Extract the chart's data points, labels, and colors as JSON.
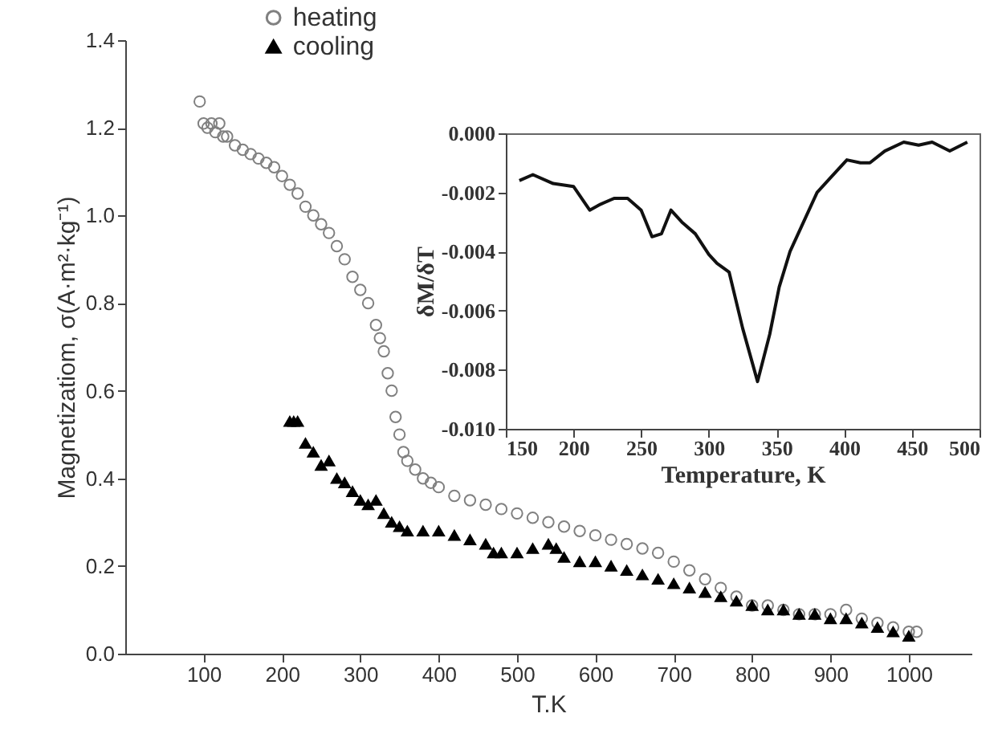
{
  "chart_data": [
    {
      "type": "scatter",
      "xlabel": "T.K",
      "ylabel": "Magnetizatiom, σ(A·m²·kg⁻¹)",
      "xlim": [
        0,
        1080
      ],
      "xticks": [
        100,
        200,
        300,
        400,
        500,
        600,
        700,
        800,
        900,
        1000
      ],
      "ylim": [
        0,
        1.4
      ],
      "yticks": [
        {
          "value": 0,
          "label": "0.0"
        },
        0.2,
        0.4,
        0.6,
        0.8,
        {
          "value": 1,
          "label": "1.0"
        },
        1.2,
        1.4
      ],
      "legend": "top left",
      "series": [
        {
          "name": "heating",
          "color": "#808080",
          "marker": "circle",
          "x": [
            95,
            100,
            105,
            110,
            115,
            120,
            125,
            130,
            140,
            150,
            160,
            170,
            180,
            190,
            200,
            210,
            220,
            230,
            240,
            250,
            260,
            270,
            280,
            290,
            300,
            310,
            320,
            325,
            330,
            335,
            340,
            345,
            350,
            355,
            360,
            370,
            380,
            390,
            400,
            420,
            440,
            460,
            480,
            500,
            520,
            540,
            560,
            580,
            600,
            620,
            640,
            660,
            680,
            700,
            720,
            740,
            760,
            780,
            800,
            820,
            840,
            860,
            880,
            900,
            920,
            940,
            960,
            980,
            1000,
            1010
          ],
          "values": [
            1.26,
            1.21,
            1.2,
            1.21,
            1.19,
            1.21,
            1.18,
            1.18,
            1.16,
            1.15,
            1.14,
            1.13,
            1.12,
            1.11,
            1.09,
            1.07,
            1.05,
            1.02,
            1.0,
            0.98,
            0.96,
            0.93,
            0.9,
            0.86,
            0.83,
            0.8,
            0.75,
            0.72,
            0.69,
            0.64,
            0.6,
            0.54,
            0.5,
            0.46,
            0.44,
            0.42,
            0.4,
            0.39,
            0.38,
            0.36,
            0.35,
            0.34,
            0.33,
            0.32,
            0.31,
            0.3,
            0.29,
            0.28,
            0.27,
            0.26,
            0.25,
            0.24,
            0.23,
            0.21,
            0.19,
            0.17,
            0.15,
            0.13,
            0.11,
            0.11,
            0.1,
            0.09,
            0.09,
            0.09,
            0.1,
            0.08,
            0.07,
            0.06,
            0.05,
            0.05
          ]
        },
        {
          "name": "cooling",
          "color": "#000000",
          "marker": "triangle",
          "x": [
            210,
            215,
            220,
            230,
            240,
            250,
            260,
            270,
            280,
            290,
            300,
            310,
            320,
            330,
            340,
            350,
            360,
            380,
            400,
            420,
            440,
            460,
            470,
            480,
            500,
            520,
            540,
            550,
            560,
            580,
            600,
            620,
            640,
            660,
            680,
            700,
            720,
            740,
            760,
            780,
            800,
            820,
            840,
            860,
            880,
            900,
            920,
            940,
            960,
            980,
            1000
          ],
          "values": [
            0.53,
            0.53,
            0.53,
            0.48,
            0.46,
            0.43,
            0.44,
            0.4,
            0.39,
            0.37,
            0.35,
            0.34,
            0.35,
            0.32,
            0.3,
            0.29,
            0.28,
            0.28,
            0.28,
            0.27,
            0.26,
            0.25,
            0.23,
            0.23,
            0.23,
            0.24,
            0.25,
            0.24,
            0.22,
            0.21,
            0.21,
            0.2,
            0.19,
            0.18,
            0.17,
            0.16,
            0.15,
            0.14,
            0.13,
            0.12,
            0.11,
            0.1,
            0.1,
            0.09,
            0.09,
            0.08,
            0.08,
            0.07,
            0.06,
            0.05,
            0.04
          ]
        }
      ]
    },
    {
      "type": "line",
      "xlabel": "Temperature, K",
      "ylabel": "δM/δT",
      "xlim": [
        150,
        500
      ],
      "xticks": [
        150,
        200,
        250,
        300,
        350,
        400,
        450,
        500
      ],
      "ylim": [
        -0.01,
        0
      ],
      "yticks": [
        {
          "value": -0.01,
          "label": "-0.010"
        },
        {
          "value": -0.008,
          "label": "-0.008"
        },
        {
          "value": -0.006,
          "label": "-0.006"
        },
        {
          "value": -0.004,
          "label": "-0.004"
        },
        {
          "value": -0.002,
          "label": "-0.002"
        },
        {
          "value": 0,
          "label": "0.000"
        }
      ],
      "line_style": "solid",
      "x": [
        160,
        170,
        185,
        200,
        212,
        220,
        230,
        240,
        250,
        258,
        265,
        272,
        280,
        290,
        300,
        306,
        315,
        325,
        336,
        345,
        352,
        360,
        370,
        380,
        390,
        402,
        412,
        419,
        430,
        444,
        455,
        465,
        478,
        491
      ],
      "series": [
        {
          "color": "#111111",
          "values": [
            -0.0016,
            -0.0014,
            -0.0017,
            -0.0018,
            -0.0026,
            -0.0024,
            -0.0022,
            -0.0022,
            -0.0026,
            -0.0035,
            -0.0034,
            -0.0026,
            -0.003,
            -0.0034,
            -0.0041,
            -0.0044,
            -0.0047,
            -0.0066,
            -0.0084,
            -0.0068,
            -0.0052,
            -0.004,
            -0.003,
            -0.002,
            -0.0015,
            -0.0009,
            -0.001,
            -0.001,
            -0.0006,
            -0.0003,
            -0.0004,
            -0.0003,
            -0.0006,
            -0.0003
          ]
        }
      ]
    }
  ]
}
